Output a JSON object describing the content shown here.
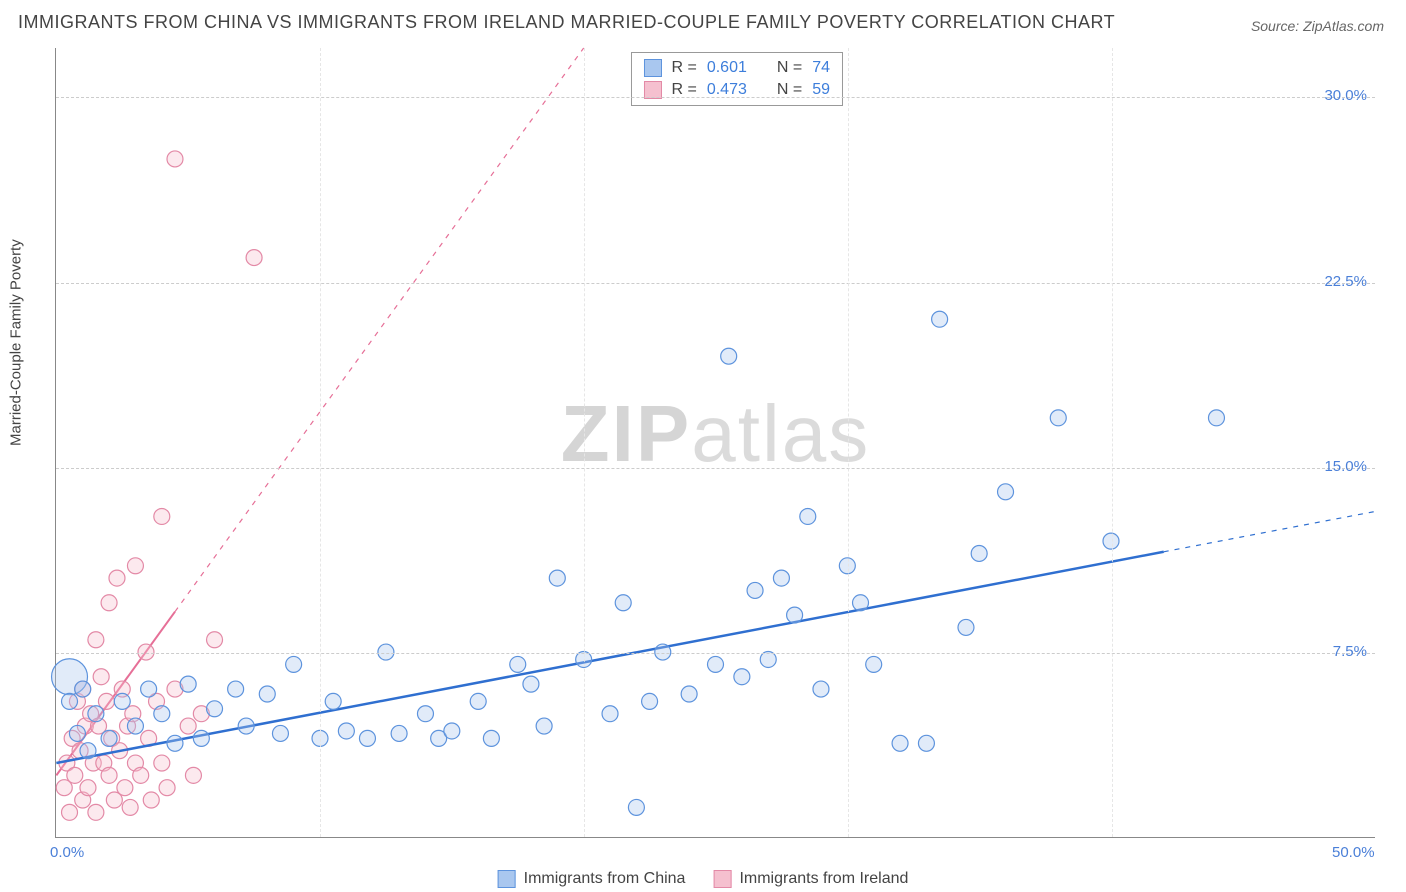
{
  "title": "IMMIGRANTS FROM CHINA VS IMMIGRANTS FROM IRELAND MARRIED-COUPLE FAMILY POVERTY CORRELATION CHART",
  "source_label": "Source:",
  "source_name": "ZipAtlas.com",
  "ylabel": "Married-Couple Family Poverty",
  "watermark_a": "ZIP",
  "watermark_b": "atlas",
  "chart": {
    "type": "scatter",
    "xlim": [
      0,
      50
    ],
    "ylim": [
      0,
      32
    ],
    "x_ticks": [
      0,
      50
    ],
    "x_tick_labels": [
      "0.0%",
      "50.0%"
    ],
    "y_ticks": [
      7.5,
      15.0,
      22.5,
      30.0
    ],
    "y_tick_labels": [
      "7.5%",
      "15.0%",
      "22.5%",
      "30.0%"
    ],
    "grid_color": "#cccccc",
    "background_color": "#ffffff",
    "marker_radius": 8,
    "marker_radius_large": 18,
    "series": [
      {
        "name": "Immigrants from China",
        "color_fill": "#a9c7ef",
        "color_stroke": "#5d93dd",
        "R": "0.601",
        "N": "74",
        "trend": {
          "x1": 0,
          "y1": 3.0,
          "x2": 50,
          "y2": 13.2,
          "solid_until_x": 42,
          "color": "#2f6fd0",
          "width": 2.5
        },
        "points": [
          [
            0.5,
            5.5
          ],
          [
            0.8,
            4.2
          ],
          [
            1.0,
            6.0
          ],
          [
            1.2,
            3.5
          ],
          [
            1.5,
            5.0
          ],
          [
            2.0,
            4.0
          ],
          [
            2.5,
            5.5
          ],
          [
            3.0,
            4.5
          ],
          [
            3.5,
            6.0
          ],
          [
            4.0,
            5.0
          ],
          [
            4.5,
            3.8
          ],
          [
            5.0,
            6.2
          ],
          [
            5.5,
            4.0
          ],
          [
            6.0,
            5.2
          ],
          [
            6.8,
            6.0
          ],
          [
            7.2,
            4.5
          ],
          [
            8.0,
            5.8
          ],
          [
            8.5,
            4.2
          ],
          [
            9.0,
            7.0
          ],
          [
            10.0,
            4.0
          ],
          [
            10.5,
            5.5
          ],
          [
            11.0,
            4.3
          ],
          [
            11.8,
            4.0
          ],
          [
            12.5,
            7.5
          ],
          [
            13.0,
            4.2
          ],
          [
            14.0,
            5.0
          ],
          [
            14.5,
            4.0
          ],
          [
            15.0,
            4.3
          ],
          [
            16.0,
            5.5
          ],
          [
            16.5,
            4.0
          ],
          [
            17.5,
            7.0
          ],
          [
            18.0,
            6.2
          ],
          [
            18.5,
            4.5
          ],
          [
            19.0,
            10.5
          ],
          [
            20.0,
            7.2
          ],
          [
            21.0,
            5.0
          ],
          [
            21.5,
            9.5
          ],
          [
            22.0,
            1.2
          ],
          [
            22.5,
            5.5
          ],
          [
            23.0,
            7.5
          ],
          [
            24.0,
            5.8
          ],
          [
            25.0,
            7.0
          ],
          [
            25.5,
            19.5
          ],
          [
            26.0,
            6.5
          ],
          [
            26.5,
            10.0
          ],
          [
            27.0,
            7.2
          ],
          [
            27.5,
            10.5
          ],
          [
            28.0,
            9.0
          ],
          [
            28.5,
            13.0
          ],
          [
            29.0,
            6.0
          ],
          [
            30.0,
            11.0
          ],
          [
            30.5,
            9.5
          ],
          [
            31.0,
            7.0
          ],
          [
            32.0,
            3.8
          ],
          [
            33.0,
            3.8
          ],
          [
            33.5,
            21.0
          ],
          [
            34.5,
            8.5
          ],
          [
            35.0,
            11.5
          ],
          [
            36.0,
            14.0
          ],
          [
            38.0,
            17.0
          ],
          [
            40.0,
            12.0
          ],
          [
            44.0,
            17.0
          ]
        ],
        "big_points": [
          [
            0.5,
            6.5
          ]
        ]
      },
      {
        "name": "Immigrants from Ireland",
        "color_fill": "#f5c0cf",
        "color_stroke": "#e389a6",
        "R": "0.473",
        "N": "59",
        "trend": {
          "x1": 0,
          "y1": 2.5,
          "x2": 20,
          "y2": 32,
          "solid_until_x": 4.5,
          "color": "#e66f97",
          "width": 2
        },
        "points": [
          [
            0.3,
            2.0
          ],
          [
            0.4,
            3.0
          ],
          [
            0.5,
            1.0
          ],
          [
            0.6,
            4.0
          ],
          [
            0.7,
            2.5
          ],
          [
            0.8,
            5.5
          ],
          [
            0.9,
            3.5
          ],
          [
            1.0,
            1.5
          ],
          [
            1.0,
            6.0
          ],
          [
            1.1,
            4.5
          ],
          [
            1.2,
            2.0
          ],
          [
            1.3,
            5.0
          ],
          [
            1.4,
            3.0
          ],
          [
            1.5,
            8.0
          ],
          [
            1.5,
            1.0
          ],
          [
            1.6,
            4.5
          ],
          [
            1.7,
            6.5
          ],
          [
            1.8,
            3.0
          ],
          [
            1.9,
            5.5
          ],
          [
            2.0,
            2.5
          ],
          [
            2.0,
            9.5
          ],
          [
            2.1,
            4.0
          ],
          [
            2.2,
            1.5
          ],
          [
            2.3,
            10.5
          ],
          [
            2.4,
            3.5
          ],
          [
            2.5,
            6.0
          ],
          [
            2.6,
            2.0
          ],
          [
            2.7,
            4.5
          ],
          [
            2.8,
            1.2
          ],
          [
            2.9,
            5.0
          ],
          [
            3.0,
            3.0
          ],
          [
            3.0,
            11.0
          ],
          [
            3.2,
            2.5
          ],
          [
            3.4,
            7.5
          ],
          [
            3.5,
            4.0
          ],
          [
            3.6,
            1.5
          ],
          [
            3.8,
            5.5
          ],
          [
            4.0,
            3.0
          ],
          [
            4.0,
            13.0
          ],
          [
            4.2,
            2.0
          ],
          [
            4.5,
            6.0
          ],
          [
            4.5,
            27.5
          ],
          [
            5.0,
            4.5
          ],
          [
            5.2,
            2.5
          ],
          [
            5.5,
            5.0
          ],
          [
            6.0,
            8.0
          ],
          [
            7.5,
            23.5
          ]
        ],
        "big_points": []
      }
    ]
  },
  "stat_labels": {
    "R": "R =",
    "N": "N ="
  },
  "legend_bottom": [
    "Immigrants from China",
    "Immigrants from Ireland"
  ]
}
